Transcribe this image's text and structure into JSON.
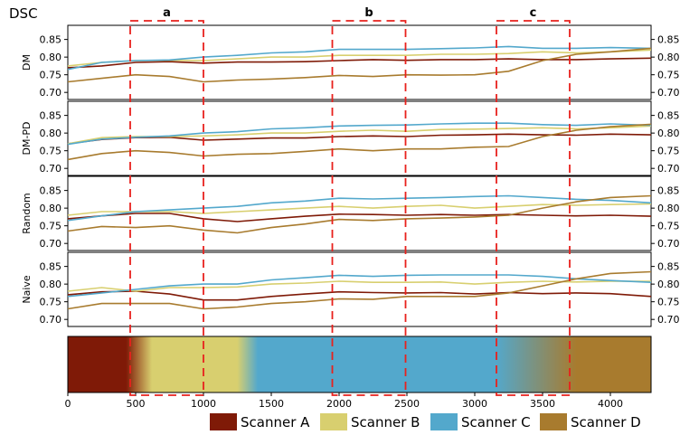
{
  "chart_data": {
    "type": "line",
    "title": "DSC",
    "x_range": [
      0,
      4300
    ],
    "y_range": [
      0.68,
      0.89
    ],
    "x_ticks": [
      "0",
      "500",
      "1000",
      "1500",
      "2000",
      "2500",
      "3000",
      "3500",
      "4000"
    ],
    "x_tick_values": [
      0,
      500,
      1000,
      1500,
      2000,
      2500,
      3000,
      3500,
      4000
    ],
    "y_ticks": [
      "0.70",
      "0.75",
      "0.80",
      "0.85"
    ],
    "y_tick_values": [
      0.7,
      0.75,
      0.8,
      0.85
    ],
    "x": [
      0,
      250,
      500,
      750,
      1000,
      1250,
      1500,
      1750,
      2000,
      2250,
      2500,
      2750,
      3000,
      3250,
      3500,
      3750,
      4000,
      4300
    ],
    "colors": {
      "Scanner A": "#7f1a07",
      "Scanner B": "#d8cf6f",
      "Scanner C": "#53a8cc",
      "Scanner D": "#a87b2e"
    },
    "highlight_regions": [
      {
        "label": "a",
        "x_start": 460,
        "x_end": 1000
      },
      {
        "label": "b",
        "x_start": 1950,
        "x_end": 2490
      },
      {
        "label": "c",
        "x_start": 3160,
        "x_end": 3700
      }
    ],
    "panels": [
      {
        "ylabel": "DM",
        "series": [
          {
            "name": "Scanner A",
            "values": [
              0.77,
              0.775,
              0.785,
              0.787,
              0.783,
              0.786,
              0.786,
              0.787,
              0.79,
              0.793,
              0.791,
              0.793,
              0.793,
              0.795,
              0.793,
              0.793,
              0.795,
              0.797
            ]
          },
          {
            "name": "Scanner B",
            "values": [
              0.775,
              0.785,
              0.79,
              0.791,
              0.79,
              0.795,
              0.8,
              0.8,
              0.805,
              0.805,
              0.805,
              0.808,
              0.808,
              0.81,
              0.815,
              0.812,
              0.815,
              0.82
            ]
          },
          {
            "name": "Scanner C",
            "values": [
              0.765,
              0.785,
              0.79,
              0.792,
              0.8,
              0.805,
              0.812,
              0.815,
              0.822,
              0.822,
              0.822,
              0.824,
              0.826,
              0.83,
              0.825,
              0.825,
              0.827,
              0.825
            ]
          },
          {
            "name": "Scanner D",
            "values": [
              0.73,
              0.74,
              0.75,
              0.745,
              0.73,
              0.735,
              0.738,
              0.742,
              0.748,
              0.745,
              0.75,
              0.749,
              0.75,
              0.76,
              0.79,
              0.808,
              0.815,
              0.825
            ]
          }
        ]
      },
      {
        "ylabel": "DM-PD",
        "series": [
          {
            "name": "Scanner A",
            "values": [
              0.77,
              0.782,
              0.787,
              0.788,
              0.78,
              0.783,
              0.786,
              0.786,
              0.79,
              0.792,
              0.79,
              0.794,
              0.795,
              0.797,
              0.795,
              0.794,
              0.797,
              0.795
            ]
          },
          {
            "name": "Scanner B",
            "values": [
              0.77,
              0.787,
              0.79,
              0.79,
              0.792,
              0.795,
              0.8,
              0.8,
              0.805,
              0.808,
              0.805,
              0.81,
              0.811,
              0.813,
              0.815,
              0.812,
              0.815,
              0.82
            ]
          },
          {
            "name": "Scanner C",
            "values": [
              0.768,
              0.783,
              0.788,
              0.792,
              0.8,
              0.804,
              0.812,
              0.815,
              0.82,
              0.822,
              0.823,
              0.826,
              0.828,
              0.828,
              0.824,
              0.822,
              0.826,
              0.822
            ]
          },
          {
            "name": "Scanner D",
            "values": [
              0.725,
              0.742,
              0.75,
              0.745,
              0.735,
              0.74,
              0.742,
              0.748,
              0.755,
              0.75,
              0.755,
              0.755,
              0.76,
              0.762,
              0.79,
              0.808,
              0.818,
              0.825
            ]
          }
        ]
      },
      {
        "ylabel": "Random",
        "series": [
          {
            "name": "Scanner A",
            "values": [
              0.77,
              0.778,
              0.785,
              0.785,
              0.77,
              0.762,
              0.77,
              0.777,
              0.783,
              0.782,
              0.78,
              0.782,
              0.78,
              0.782,
              0.78,
              0.778,
              0.78,
              0.777
            ]
          },
          {
            "name": "Scanner B",
            "values": [
              0.78,
              0.79,
              0.79,
              0.79,
              0.785,
              0.79,
              0.795,
              0.8,
              0.805,
              0.8,
              0.805,
              0.808,
              0.8,
              0.805,
              0.81,
              0.808,
              0.81,
              0.812
            ]
          },
          {
            "name": "Scanner C",
            "values": [
              0.765,
              0.778,
              0.79,
              0.795,
              0.8,
              0.805,
              0.815,
              0.82,
              0.828,
              0.826,
              0.828,
              0.83,
              0.833,
              0.835,
              0.83,
              0.825,
              0.822,
              0.815
            ]
          },
          {
            "name": "Scanner D",
            "values": [
              0.735,
              0.748,
              0.745,
              0.75,
              0.738,
              0.73,
              0.745,
              0.755,
              0.768,
              0.765,
              0.77,
              0.772,
              0.775,
              0.78,
              0.8,
              0.818,
              0.83,
              0.835
            ]
          }
        ]
      },
      {
        "ylabel": "Naive",
        "series": [
          {
            "name": "Scanner A",
            "values": [
              0.77,
              0.778,
              0.78,
              0.772,
              0.755,
              0.755,
              0.765,
              0.772,
              0.778,
              0.776,
              0.775,
              0.776,
              0.772,
              0.776,
              0.773,
              0.775,
              0.773,
              0.765
            ]
          },
          {
            "name": "Scanner B",
            "values": [
              0.78,
              0.79,
              0.78,
              0.79,
              0.79,
              0.792,
              0.8,
              0.803,
              0.808,
              0.805,
              0.805,
              0.806,
              0.8,
              0.805,
              0.808,
              0.806,
              0.808,
              0.808
            ]
          },
          {
            "name": "Scanner C",
            "values": [
              0.765,
              0.775,
              0.785,
              0.795,
              0.8,
              0.8,
              0.812,
              0.818,
              0.825,
              0.822,
              0.825,
              0.826,
              0.826,
              0.826,
              0.822,
              0.815,
              0.81,
              0.805
            ]
          },
          {
            "name": "Scanner D",
            "values": [
              0.73,
              0.745,
              0.745,
              0.745,
              0.73,
              0.735,
              0.745,
              0.75,
              0.758,
              0.757,
              0.765,
              0.765,
              0.765,
              0.775,
              0.795,
              0.815,
              0.83,
              0.835
            ]
          }
        ]
      }
    ],
    "domain_strip": [
      {
        "from": 0,
        "to": 430,
        "scanner": "Scanner A"
      },
      {
        "from": 620,
        "to": 1250,
        "scanner": "Scanner B"
      },
      {
        "from": 1400,
        "to": 3150,
        "scanner": "Scanner C"
      },
      {
        "from": 3750,
        "to": 4300,
        "scanner": "Scanner D"
      }
    ],
    "legend": [
      "Scanner A",
      "Scanner B",
      "Scanner C",
      "Scanner D"
    ]
  }
}
